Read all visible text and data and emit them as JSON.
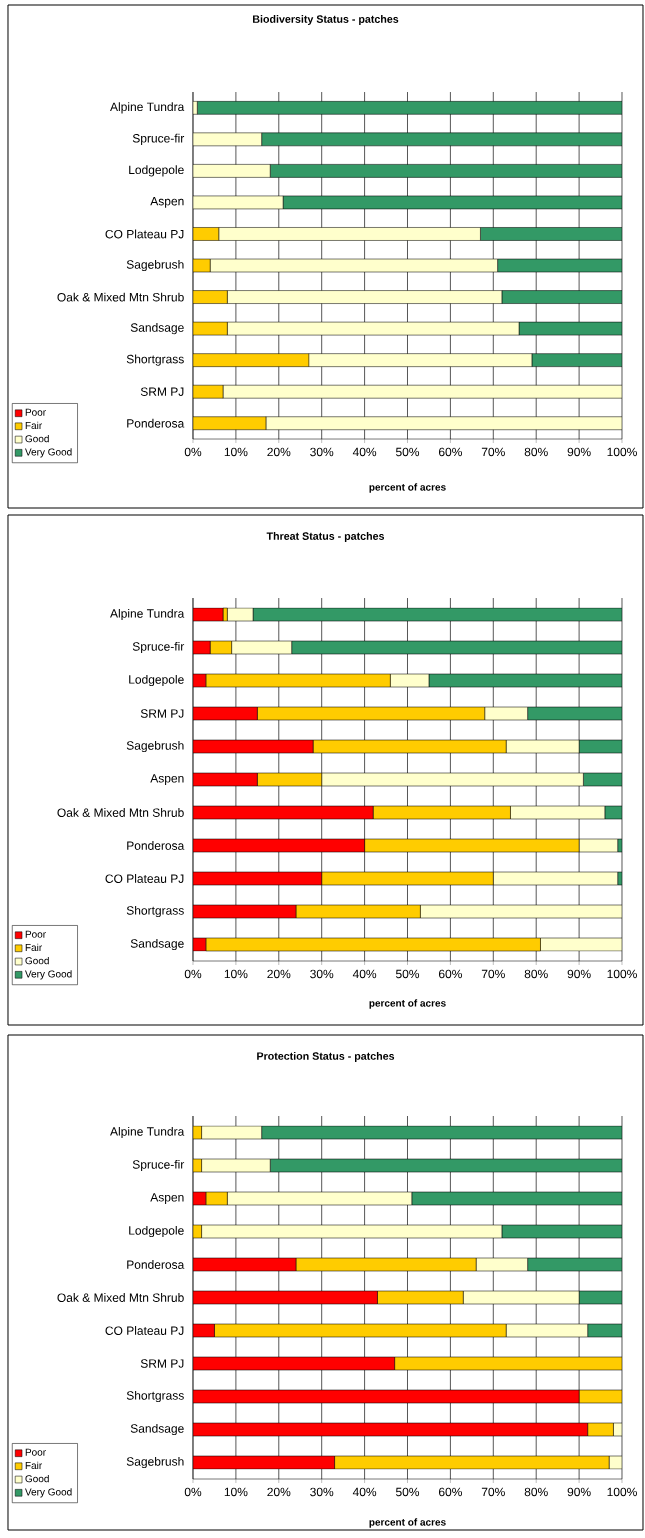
{
  "chart_data": [
    {
      "type": "bar",
      "orientation": "horizontal",
      "stacked": true,
      "title": "Biodiversity Status - patches",
      "xlabel": "percent of acres",
      "categories": [
        "Alpine Tundra",
        "Spruce-fir",
        "Lodgepole",
        "Aspen",
        "CO Plateau PJ",
        "Sagebrush",
        "Oak & Mixed Mtn Shrub",
        "Sandsage",
        "Shortgrass",
        "SRM PJ",
        "Ponderosa"
      ],
      "series": [
        {
          "name": "Poor",
          "color": "#ff0000",
          "values": [
            0,
            0,
            0,
            0,
            0,
            0,
            0,
            0,
            0,
            0,
            0
          ]
        },
        {
          "name": "Fair",
          "color": "#ffcc00",
          "values": [
            0,
            0,
            0,
            0,
            6,
            4,
            8,
            8,
            27,
            7,
            17
          ]
        },
        {
          "name": "Good",
          "color": "#ffffcc",
          "values": [
            1,
            16,
            18,
            21,
            61,
            67,
            64,
            68,
            52,
            93,
            83
          ]
        },
        {
          "name": "Very Good",
          "color": "#339966",
          "values": [
            99,
            84,
            82,
            79,
            33,
            29,
            28,
            24,
            21,
            0,
            0
          ]
        }
      ],
      "xlim": [
        0,
        100
      ],
      "xticks": [
        {
          "value": 0,
          "label": "0%"
        },
        {
          "value": 10,
          "label": "10%"
        },
        {
          "value": 20,
          "label": "20%"
        },
        {
          "value": 30,
          "label": "30%"
        },
        {
          "value": 40,
          "label": "40%"
        },
        {
          "value": 50,
          "label": "50%"
        },
        {
          "value": 60,
          "label": "60%"
        },
        {
          "value": 70,
          "label": "70%"
        },
        {
          "value": 80,
          "label": "80%"
        },
        {
          "value": 90,
          "label": "90%"
        },
        {
          "value": 100,
          "label": "100%"
        }
      ],
      "grid": "x",
      "legend": "bottom left"
    },
    {
      "type": "bar",
      "orientation": "horizontal",
      "stacked": true,
      "title": "Threat Status - patches",
      "xlabel": "percent of acres",
      "categories": [
        "Alpine Tundra",
        "Spruce-fir",
        "Lodgepole",
        "SRM PJ",
        "Sagebrush",
        "Aspen",
        "Oak & Mixed Mtn Shrub",
        "Ponderosa",
        "CO Plateau PJ",
        "Shortgrass",
        "Sandsage"
      ],
      "series": [
        {
          "name": "Poor",
          "color": "#ff0000",
          "values": [
            7,
            4,
            3,
            15,
            28,
            15,
            42,
            40,
            30,
            24,
            3
          ]
        },
        {
          "name": "Fair",
          "color": "#ffcc00",
          "values": [
            1,
            5,
            43,
            53,
            45,
            15,
            32,
            50,
            40,
            29,
            78
          ]
        },
        {
          "name": "Good",
          "color": "#ffffcc",
          "values": [
            6,
            14,
            9,
            10,
            17,
            61,
            22,
            9,
            29,
            47,
            19
          ]
        },
        {
          "name": "Very Good",
          "color": "#339966",
          "values": [
            86,
            77,
            45,
            22,
            10,
            9,
            4,
            1,
            1,
            0,
            0
          ]
        }
      ],
      "xlim": [
        0,
        100
      ],
      "xticks": [
        {
          "value": 0,
          "label": "0%"
        },
        {
          "value": 10,
          "label": "10%"
        },
        {
          "value": 20,
          "label": "20%"
        },
        {
          "value": 30,
          "label": "30%"
        },
        {
          "value": 40,
          "label": "40%"
        },
        {
          "value": 50,
          "label": "50%"
        },
        {
          "value": 60,
          "label": "60%"
        },
        {
          "value": 70,
          "label": "70%"
        },
        {
          "value": 80,
          "label": "80%"
        },
        {
          "value": 90,
          "label": "90%"
        },
        {
          "value": 100,
          "label": "100%"
        }
      ],
      "grid": "x",
      "legend": "bottom left"
    },
    {
      "type": "bar",
      "orientation": "horizontal",
      "stacked": true,
      "title": "Protection Status - patches",
      "xlabel": "percent of acres",
      "categories": [
        "Alpine Tundra",
        "Spruce-fir",
        "Aspen",
        "Lodgepole",
        "Ponderosa",
        "Oak & Mixed Mtn Shrub",
        "CO Plateau PJ",
        "SRM PJ",
        "Shortgrass",
        "Sandsage",
        "Sagebrush"
      ],
      "series": [
        {
          "name": "Poor",
          "color": "#ff0000",
          "values": [
            0,
            0,
            3,
            0,
            24,
            43,
            5,
            47,
            90,
            92,
            33
          ]
        },
        {
          "name": "Fair",
          "color": "#ffcc00",
          "values": [
            2,
            2,
            5,
            2,
            42,
            20,
            68,
            53,
            10,
            6,
            64
          ]
        },
        {
          "name": "Good",
          "color": "#ffffcc",
          "values": [
            14,
            16,
            43,
            70,
            12,
            27,
            19,
            0,
            0,
            2,
            3
          ]
        },
        {
          "name": "Very Good",
          "color": "#339966",
          "values": [
            84,
            82,
            49,
            28,
            22,
            10,
            8,
            0,
            0,
            0,
            0
          ]
        }
      ],
      "xlim": [
        0,
        100
      ],
      "xticks": [
        {
          "value": 0,
          "label": "0%"
        },
        {
          "value": 10,
          "label": "10%"
        },
        {
          "value": 20,
          "label": "20%"
        },
        {
          "value": 30,
          "label": "30%"
        },
        {
          "value": 40,
          "label": "40%"
        },
        {
          "value": 50,
          "label": "50%"
        },
        {
          "value": 60,
          "label": "60%"
        },
        {
          "value": 70,
          "label": "70%"
        },
        {
          "value": 80,
          "label": "80%"
        },
        {
          "value": 90,
          "label": "90%"
        },
        {
          "value": 100,
          "label": "100%"
        }
      ],
      "grid": "x",
      "legend": "bottom left"
    }
  ]
}
